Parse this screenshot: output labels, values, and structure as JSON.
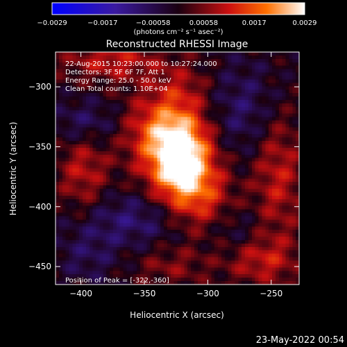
{
  "colorbar": {
    "ticks": [
      "-0.0029",
      "-0.0017",
      "-0.00058",
      "0.00058",
      "0.0017",
      "0.0029"
    ],
    "unit": "(photons cm⁻² s⁻¹ asec⁻²)",
    "range": [
      -0.0029,
      0.0029
    ]
  },
  "footer_date": "23-May-2022 00:54",
  "chart_data": {
    "type": "heatmap",
    "title": "Reconstructed RHESSI Image",
    "xlabel": "Heliocentric X (arcsec)",
    "ylabel": "Heliocentric Y (arcsec)",
    "xlim": [
      -420,
      -228
    ],
    "ylim": [
      -465,
      -271
    ],
    "xticks": [
      -400,
      -350,
      -300,
      -250
    ],
    "yticks": [
      -300,
      -350,
      -400,
      -450
    ],
    "xtick_labels": [
      "−400",
      "−350",
      "−300",
      "−250"
    ],
    "ytick_labels": [
      "−300",
      "−350",
      "−400",
      "−450"
    ],
    "annotations": [
      "22-Aug-2015 10:23:00.000 to 10:27:24.000",
      "Detectors: 3F 5F 6F 7F, Att 1",
      "Energy Range: 25.0 - 50.0 keV",
      "Clean     Total counts: 1.10E+04"
    ],
    "peak_label": "Position of Peak = [-322,-360]",
    "peak": [
      -322,
      -360
    ],
    "peak_value": 0.0029,
    "blobs": [
      {
        "x": -322,
        "y": -360,
        "sx": 18,
        "sy": 26,
        "amp": 0.0032
      },
      {
        "x": -340,
        "y": -335,
        "sx": 22,
        "sy": 20,
        "amp": 0.0012
      },
      {
        "x": -305,
        "y": -395,
        "sx": 18,
        "sy": 22,
        "amp": 0.0011
      },
      {
        "x": -398,
        "y": -370,
        "sx": 14,
        "sy": 26,
        "amp": 0.001
      },
      {
        "x": -245,
        "y": -370,
        "sx": 14,
        "sy": 40,
        "amp": 0.0011
      },
      {
        "x": -258,
        "y": -445,
        "sx": 20,
        "sy": 14,
        "amp": 0.001
      },
      {
        "x": -375,
        "y": -278,
        "sx": 26,
        "sy": 12,
        "amp": 0.0011
      },
      {
        "x": -320,
        "y": -300,
        "sx": 18,
        "sy": 16,
        "amp": 0.0007
      },
      {
        "x": -330,
        "y": -450,
        "sx": 20,
        "sy": 12,
        "amp": 0.0006
      },
      {
        "x": -395,
        "y": -330,
        "sx": 20,
        "sy": 14,
        "amp": -0.0009
      },
      {
        "x": -272,
        "y": -320,
        "sx": 24,
        "sy": 30,
        "amp": -0.0008
      },
      {
        "x": -355,
        "y": -410,
        "sx": 32,
        "sy": 16,
        "amp": -0.0009
      },
      {
        "x": -395,
        "y": -440,
        "sx": 18,
        "sy": 18,
        "amp": -0.0006
      },
      {
        "x": -280,
        "y": -420,
        "sx": 16,
        "sy": 14,
        "amp": -0.0005
      }
    ]
  }
}
